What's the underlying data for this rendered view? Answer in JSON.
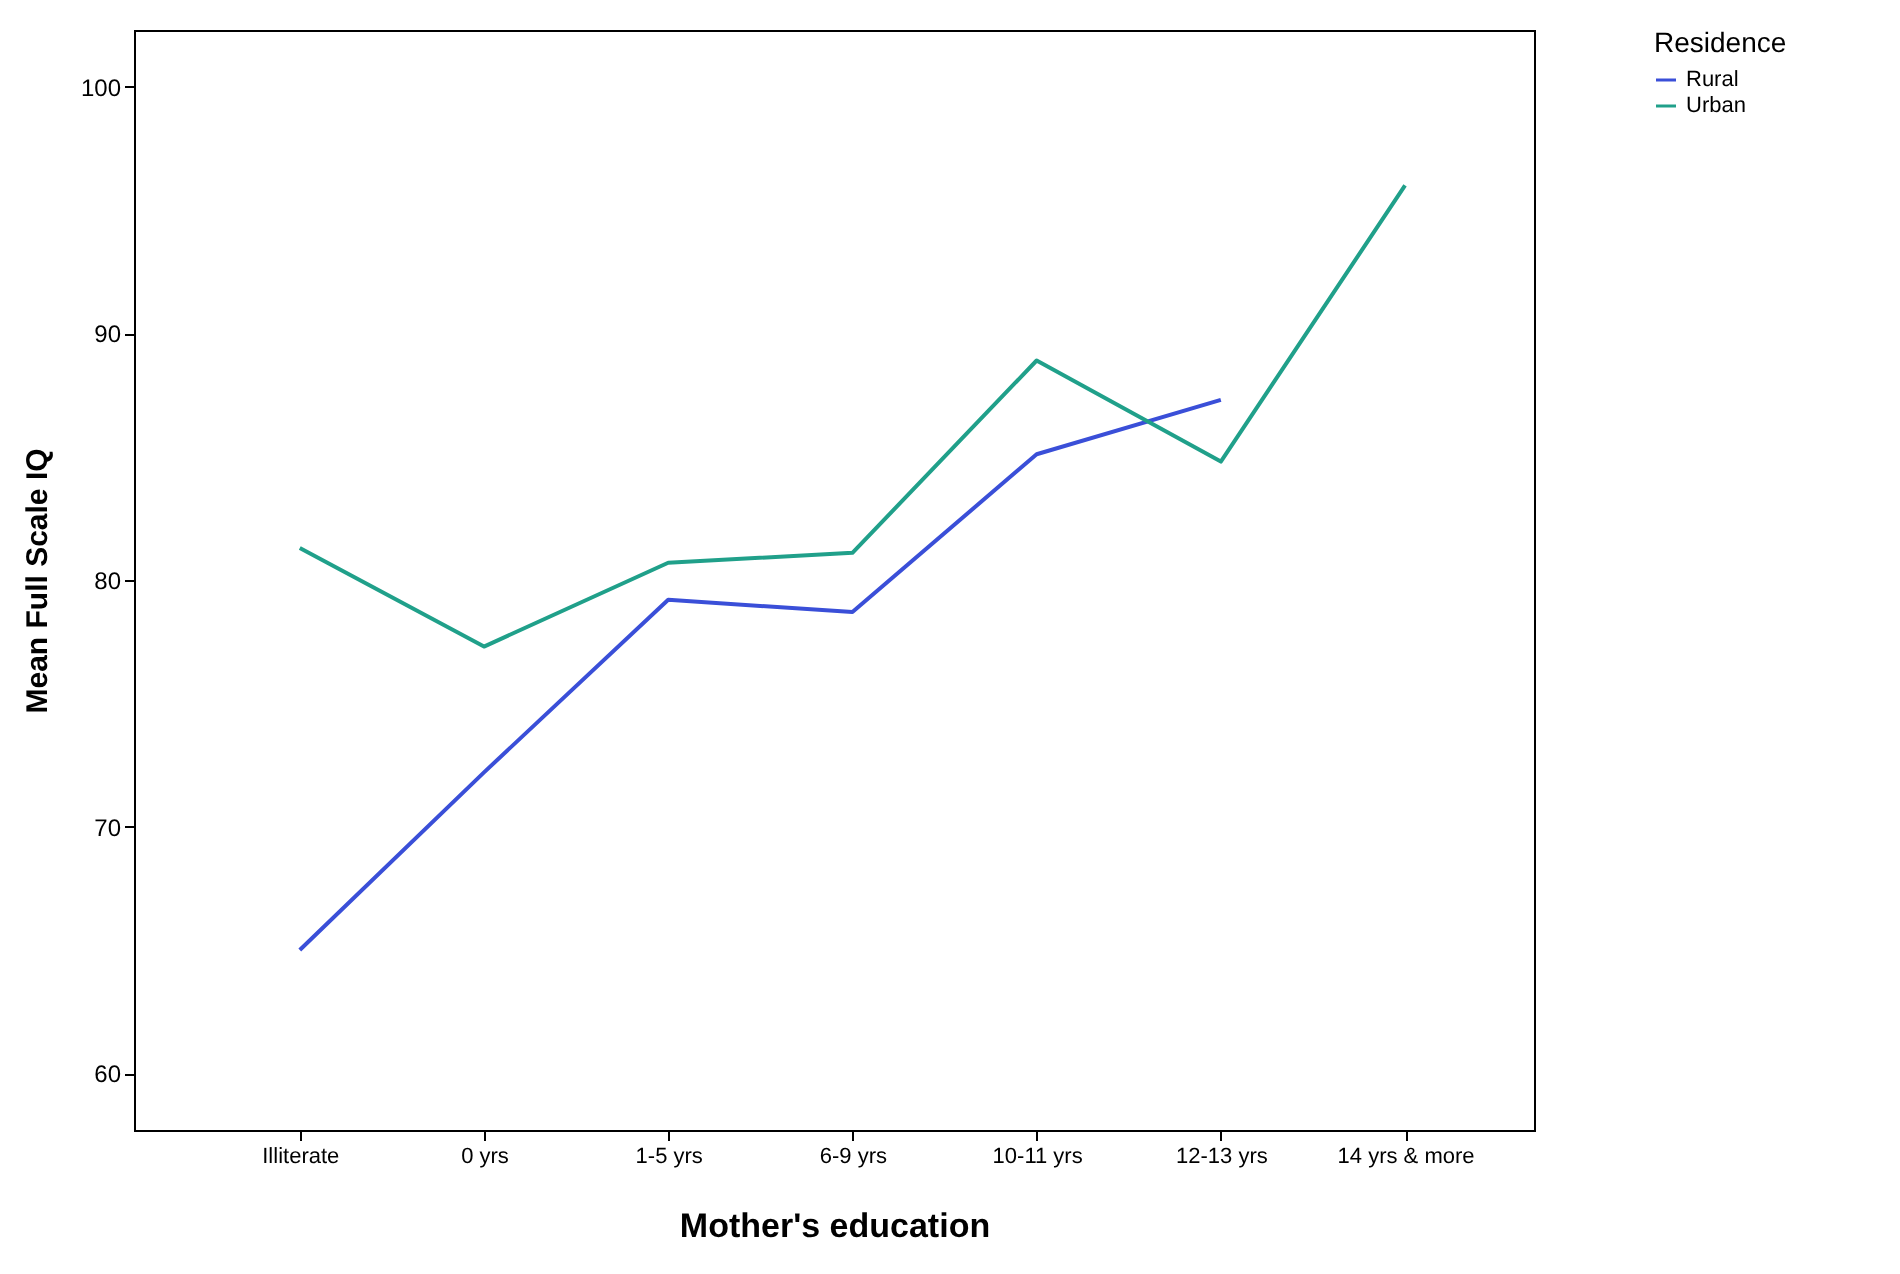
{
  "chart_data": {
    "type": "line",
    "xlabel": "Mother's education",
    "ylabel": "Mean Full Scale IQ",
    "legend_title": "Residence",
    "categories": [
      "Illiterate",
      "0 yrs",
      "1-5 yrs",
      "6-9 yrs",
      "10-11 yrs",
      "12-13 yrs",
      "14 yrs & more"
    ],
    "series": [
      {
        "name": "Rural",
        "color": "#3a4fd8",
        "values": [
          65.0,
          72.2,
          79.2,
          78.7,
          85.1,
          87.3,
          null
        ]
      },
      {
        "name": "Urban",
        "color": "#20a08a",
        "values": [
          81.3,
          77.3,
          80.7,
          81.1,
          88.9,
          84.8,
          96.0
        ]
      }
    ],
    "ylim": [
      57.7,
      102.3
    ],
    "yticks": [
      60,
      70,
      80,
      90,
      100
    ],
    "grid": false,
    "legend": "top right",
    "marker": "none",
    "line_style": "solid"
  }
}
